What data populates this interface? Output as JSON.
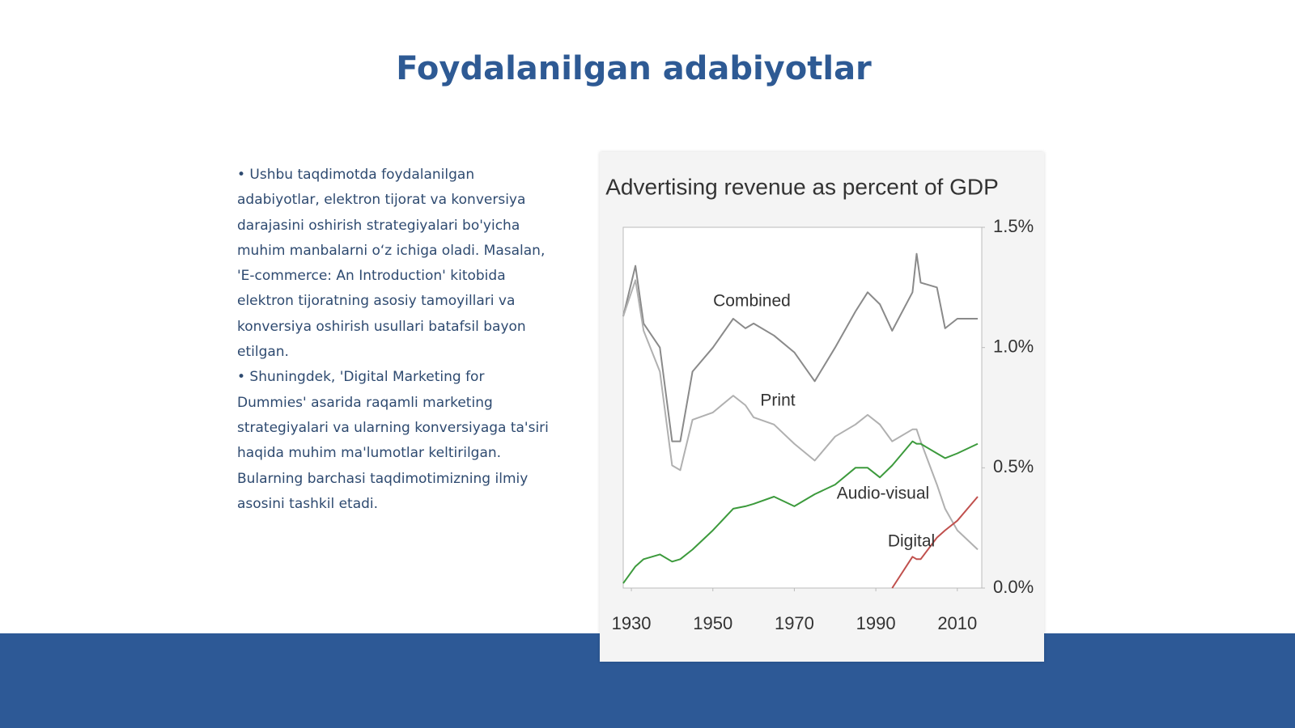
{
  "title": "Foydalanilgan adabiyotlar",
  "body": [
    "• Ushbu taqdimotda foydalanilgan adabiyotlar, elektron tijorat va konversiya darajasini oshirish strategiyalari bo'yicha muhim manbalarni o‘z ichiga oladi. Masalan, 'E-commerce: An Introduction' kitobida elektron tijoratning asosiy tamoyillari va konversiya oshirish usullari batafsil bayon etilgan.",
    "• Shuningdek, 'Digital Marketing for Dummies' asarida raqamli marketing strategiyalari va ularning konversiyaga ta'siri haqida muhim ma'lumotlar keltirilgan. Bularning barchasi taqdimotimizning ilmiy asosini tashkil etadi."
  ],
  "chart_data": {
    "type": "line",
    "title": "Advertising revenue as percent of GDP",
    "x": [
      1928,
      1931,
      1933,
      1937,
      1940,
      1942,
      1945,
      1950,
      1955,
      1958,
      1960,
      1965,
      1970,
      1975,
      1980,
      1985,
      1988,
      1991,
      1994,
      1999,
      2000,
      2001,
      2005,
      2007,
      2010,
      2015
    ],
    "series": [
      {
        "name": "Combined",
        "color": "#8a8a8a",
        "values": [
          1.13,
          1.34,
          1.1,
          1.0,
          0.61,
          0.61,
          0.9,
          1.0,
          1.12,
          1.08,
          1.1,
          1.05,
          0.98,
          0.86,
          1.0,
          1.15,
          1.23,
          1.18,
          1.07,
          1.23,
          1.39,
          1.27,
          1.25,
          1.08,
          1.12,
          1.12
        ]
      },
      {
        "name": "Print",
        "color": "#b0b0b0",
        "values": [
          1.13,
          1.28,
          1.07,
          0.9,
          0.51,
          0.49,
          0.7,
          0.73,
          0.8,
          0.76,
          0.71,
          0.68,
          0.6,
          0.53,
          0.63,
          0.68,
          0.72,
          0.68,
          0.61,
          0.66,
          0.66,
          0.61,
          0.43,
          0.33,
          0.24,
          0.16
        ]
      },
      {
        "name": "Audio-visual",
        "color": "#3c9a3c",
        "values": [
          0.02,
          0.09,
          0.12,
          0.14,
          0.11,
          0.12,
          0.16,
          0.24,
          0.33,
          0.34,
          0.35,
          0.38,
          0.34,
          0.39,
          0.43,
          0.5,
          0.5,
          0.46,
          0.51,
          0.61,
          0.6,
          0.6,
          0.56,
          0.54,
          0.56,
          0.6
        ]
      },
      {
        "name": "Digital",
        "color": "#c0504d",
        "values": [
          null,
          null,
          null,
          null,
          null,
          null,
          null,
          null,
          null,
          null,
          null,
          null,
          null,
          null,
          null,
          null,
          null,
          null,
          0.0,
          0.13,
          0.12,
          0.12,
          0.21,
          0.24,
          0.28,
          0.38
        ]
      }
    ],
    "xlim": [
      1928,
      2016
    ],
    "xticks": [
      1930,
      1950,
      1970,
      1990,
      2010
    ],
    "ylim": [
      0,
      1.5
    ],
    "yticks": [
      {
        "value": 0,
        "label": "0.0%"
      },
      {
        "value": 0.5,
        "label": "0.5%"
      },
      {
        "value": 1.0,
        "label": "1.0%"
      },
      {
        "value": 1.5,
        "label": "1.5%"
      }
    ]
  }
}
